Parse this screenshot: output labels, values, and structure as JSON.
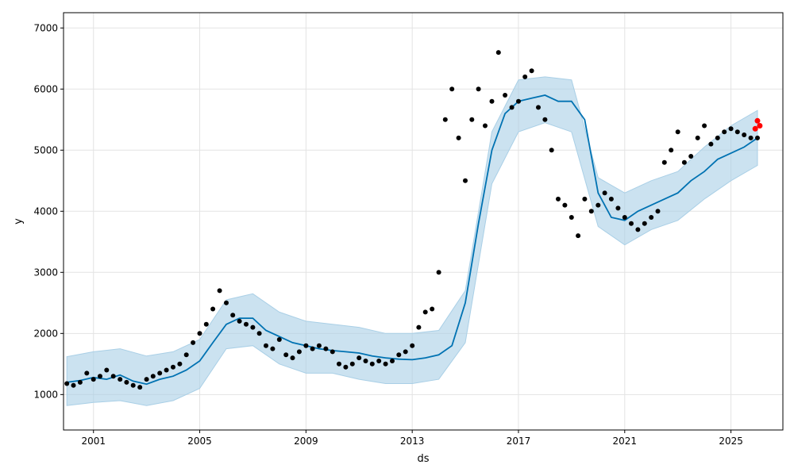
{
  "chart_data": {
    "type": "line",
    "title": "",
    "xlabel": "ds",
    "ylabel": "y",
    "xlim": [
      "1999-11-16",
      "2026-12-16"
    ],
    "ylim": [
      420,
      7250
    ],
    "grid": true,
    "x_ticks": [
      "2001",
      "2005",
      "2009",
      "2013",
      "2017",
      "2021",
      "2025"
    ],
    "y_ticks": [
      1000,
      2000,
      3000,
      4000,
      5000,
      6000,
      7000
    ],
    "colors": {
      "observed": "#000000",
      "forecast": "#0072B2",
      "interval": "#A9CFE6",
      "highlight": "#FF0000"
    },
    "series": [
      {
        "role": "observed",
        "style": "points",
        "x": [
          "2000-01",
          "2000-04",
          "2000-07",
          "2000-10",
          "2001-01",
          "2001-04",
          "2001-07",
          "2001-10",
          "2002-01",
          "2002-04",
          "2002-07",
          "2002-10",
          "2003-01",
          "2003-04",
          "2003-07",
          "2003-10",
          "2004-01",
          "2004-04",
          "2004-07",
          "2004-10",
          "2005-01",
          "2005-04",
          "2005-07",
          "2005-10",
          "2006-01",
          "2006-04",
          "2006-07",
          "2006-10",
          "2007-01",
          "2007-04",
          "2007-07",
          "2007-10",
          "2008-01",
          "2008-04",
          "2008-07",
          "2008-10",
          "2009-01",
          "2009-04",
          "2009-07",
          "2009-10",
          "2010-01",
          "2010-04",
          "2010-07",
          "2010-10",
          "2011-01",
          "2011-04",
          "2011-07",
          "2011-10",
          "2012-01",
          "2012-04",
          "2012-07",
          "2012-10",
          "2013-01",
          "2013-04",
          "2013-07",
          "2013-10",
          "2014-01",
          "2014-04",
          "2014-07",
          "2014-10",
          "2015-01",
          "2015-04",
          "2015-07",
          "2015-10",
          "2016-01",
          "2016-04",
          "2016-07",
          "2016-10",
          "2017-01",
          "2017-04",
          "2017-07",
          "2017-10",
          "2018-01",
          "2018-04",
          "2018-07",
          "2018-10",
          "2019-01",
          "2019-04",
          "2019-07",
          "2019-10",
          "2020-01",
          "2020-04",
          "2020-07",
          "2020-10",
          "2021-01",
          "2021-04",
          "2021-07",
          "2021-10",
          "2022-01",
          "2022-04",
          "2022-07",
          "2022-10",
          "2023-01",
          "2023-04",
          "2023-07",
          "2023-10",
          "2024-01",
          "2024-04",
          "2024-07",
          "2024-10",
          "2025-01",
          "2025-04",
          "2025-07",
          "2025-10",
          "2026-01"
        ],
        "y": [
          1180,
          1150,
          1200,
          1350,
          1250,
          1300,
          1400,
          1300,
          1250,
          1200,
          1150,
          1120,
          1250,
          1300,
          1350,
          1400,
          1450,
          1500,
          1650,
          1850,
          2000,
          2150,
          2400,
          2700,
          2500,
          2300,
          2200,
          2150,
          2100,
          2000,
          1800,
          1750,
          1900,
          1650,
          1600,
          1700,
          1800,
          1750,
          1800,
          1750,
          1700,
          1500,
          1450,
          1500,
          1600,
          1550,
          1500,
          1550,
          1500,
          1550,
          1650,
          1700,
          1800,
          2100,
          2350,
          2400,
          3000,
          5500,
          6000,
          5200,
          4500,
          5500,
          6000,
          5400,
          5800,
          6600,
          5900,
          5700,
          5800,
          6200,
          6300,
          5700,
          5500,
          5000,
          4200,
          4100,
          3900,
          3600,
          4200,
          4000,
          4100,
          4300,
          4200,
          4050,
          3900,
          3800,
          3700,
          3800,
          3900,
          4000,
          4800,
          5000,
          5300,
          4800,
          4900,
          5200,
          5400,
          5100,
          5200,
          5300,
          5350,
          5300,
          5250,
          5200,
          5200
        ]
      },
      {
        "role": "forecast",
        "style": "line",
        "x": [
          "2000-01",
          "2000-07",
          "2001-01",
          "2001-07",
          "2002-01",
          "2002-07",
          "2003-01",
          "2003-07",
          "2004-01",
          "2004-07",
          "2005-01",
          "2005-07",
          "2006-01",
          "2006-07",
          "2007-01",
          "2007-07",
          "2008-01",
          "2008-07",
          "2009-01",
          "2009-07",
          "2010-01",
          "2010-07",
          "2011-01",
          "2011-07",
          "2012-01",
          "2012-07",
          "2013-01",
          "2013-07",
          "2014-01",
          "2014-07",
          "2015-01",
          "2015-07",
          "2016-01",
          "2016-07",
          "2017-01",
          "2017-07",
          "2018-01",
          "2018-07",
          "2019-01",
          "2019-07",
          "2020-01",
          "2020-07",
          "2021-01",
          "2021-07",
          "2022-01",
          "2022-07",
          "2023-01",
          "2023-07",
          "2024-01",
          "2024-07",
          "2025-01",
          "2025-07",
          "2026-01"
        ],
        "y": [
          1200,
          1230,
          1280,
          1250,
          1320,
          1220,
          1170,
          1250,
          1300,
          1400,
          1550,
          1850,
          2150,
          2250,
          2250,
          2050,
          1950,
          1850,
          1800,
          1750,
          1720,
          1700,
          1680,
          1630,
          1600,
          1580,
          1570,
          1600,
          1650,
          1800,
          2500,
          3800,
          5000,
          5600,
          5800,
          5850,
          5900,
          5800,
          5800,
          5500,
          4300,
          3900,
          3850,
          4000,
          4100,
          4200,
          4300,
          4500,
          4650,
          4850,
          4950,
          5050,
          5200
        ]
      },
      {
        "role": "interval",
        "style": "band",
        "x": [
          "2000-01",
          "2001-01",
          "2002-01",
          "2003-01",
          "2004-01",
          "2005-01",
          "2006-01",
          "2007-01",
          "2008-01",
          "2009-01",
          "2010-01",
          "2011-01",
          "2012-01",
          "2013-01",
          "2014-01",
          "2015-01",
          "2016-01",
          "2017-01",
          "2018-01",
          "2019-01",
          "2020-01",
          "2021-01",
          "2022-01",
          "2023-01",
          "2024-01",
          "2025-01",
          "2026-01"
        ],
        "lower": [
          820,
          870,
          900,
          820,
          900,
          1100,
          1750,
          1800,
          1500,
          1350,
          1350,
          1250,
          1180,
          1180,
          1250,
          1850,
          4450,
          5300,
          5450,
          5300,
          3750,
          3450,
          3700,
          3850,
          4200,
          4500,
          4750
        ],
        "upper": [
          1620,
          1700,
          1750,
          1630,
          1700,
          1900,
          2550,
          2650,
          2350,
          2200,
          2150,
          2100,
          2000,
          2000,
          2050,
          2700,
          5300,
          6150,
          6200,
          6150,
          4550,
          4300,
          4500,
          4650,
          5050,
          5400,
          5650
        ]
      },
      {
        "role": "highlight",
        "style": "points",
        "x": [
          "2025-12",
          "2026-01",
          "2026-02"
        ],
        "y": [
          5350,
          5480,
          5400
        ]
      }
    ]
  }
}
